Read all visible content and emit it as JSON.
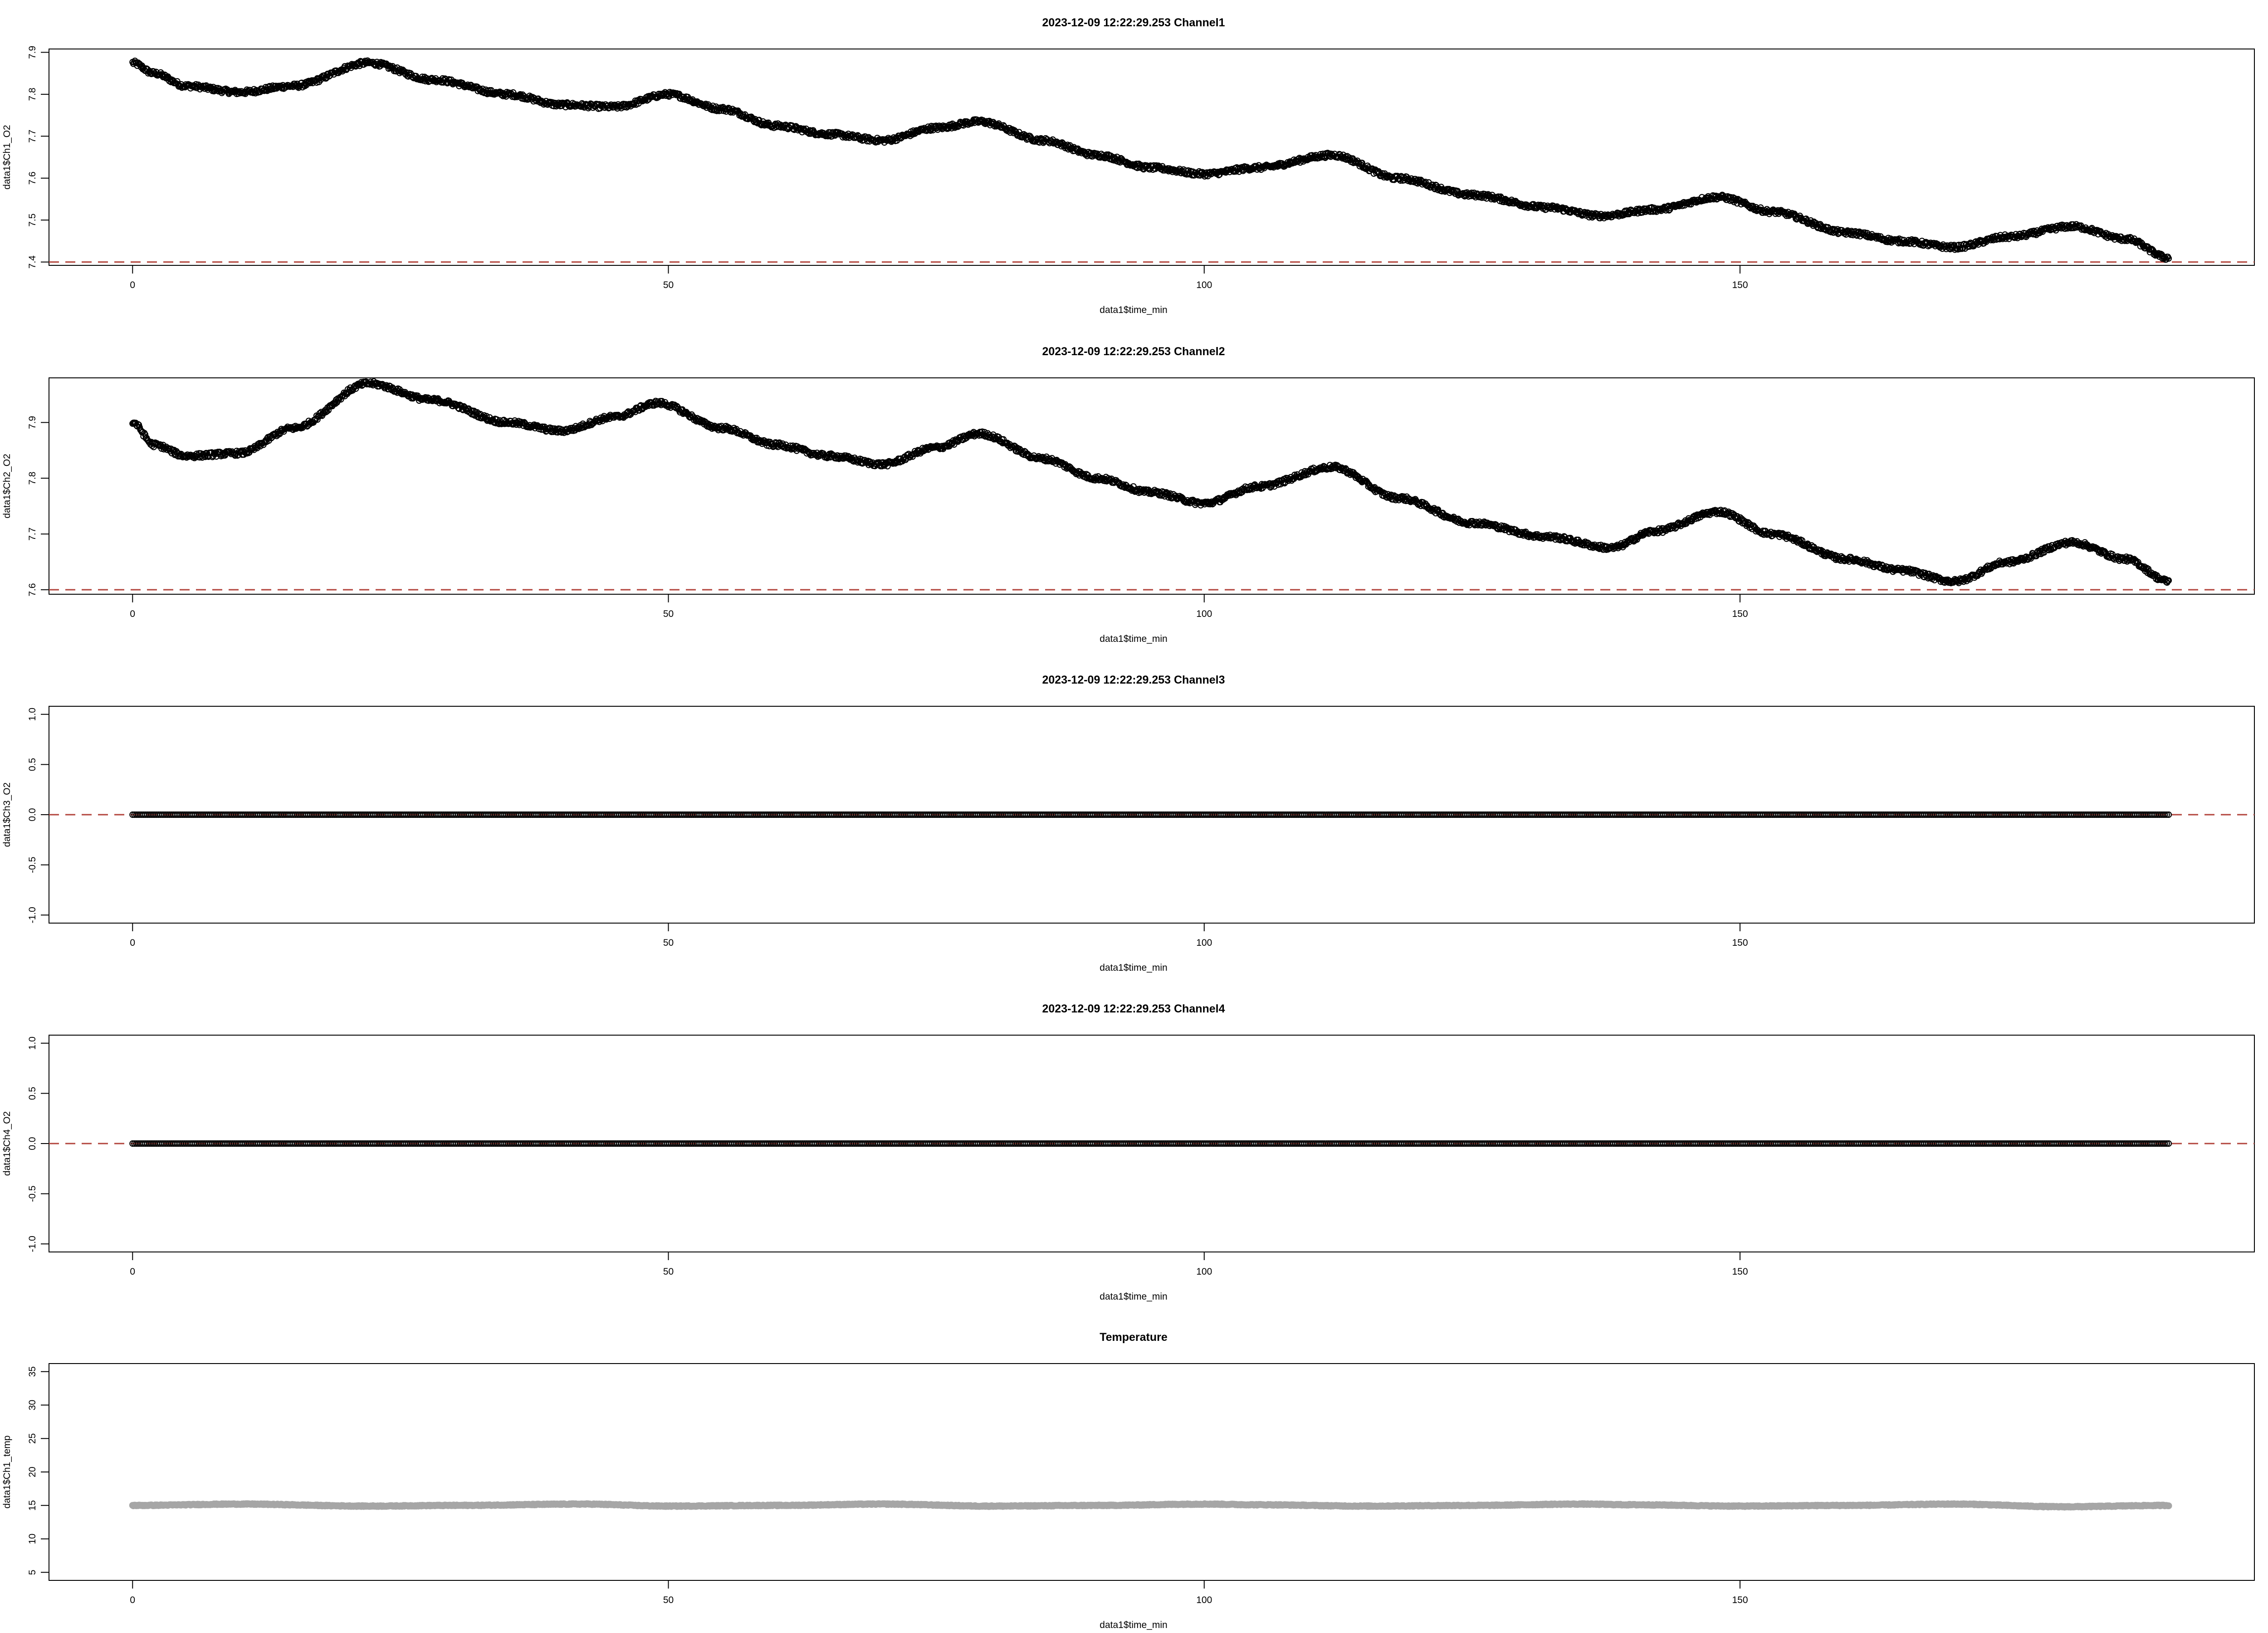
{
  "colors": {
    "points": "#000000",
    "temperature_points": "#a6a6a6",
    "reference_line": "#b2443c",
    "frame": "#000000"
  },
  "chart_data": [
    {
      "type": "scatter",
      "title": "2023-12-09 12:22:29.253 Channel1",
      "xlabel": "data1$time_min",
      "ylabel": "data1$Ch1_O2",
      "xlim": [
        -7.8,
        198
      ],
      "ylim": [
        7.392,
        7.908
      ],
      "xticks": [
        0,
        50,
        100,
        150
      ],
      "xtick_labels": [
        "0",
        "50",
        "100",
        "150"
      ],
      "yticks": [
        7.4,
        7.5,
        7.6,
        7.7,
        7.8,
        7.9
      ],
      "ytick_labels": [
        "7.4",
        "7.5",
        "7.6",
        "7.7",
        "7.8",
        "7.9"
      ],
      "hline": 7.4,
      "grid": false,
      "trend_x": [
        0,
        2,
        5,
        10,
        15,
        22,
        28,
        35,
        40,
        45,
        50,
        55,
        60,
        65,
        70,
        75,
        79,
        85,
        90,
        95,
        100,
        105,
        112,
        118,
        125,
        132,
        137,
        142,
        148,
        153,
        160,
        165,
        170,
        175,
        181,
        186,
        190
      ],
      "trend_y": [
        7.875,
        7.85,
        7.82,
        7.805,
        7.82,
        7.875,
        7.835,
        7.8,
        7.775,
        7.77,
        7.8,
        7.765,
        7.725,
        7.705,
        7.69,
        7.72,
        7.735,
        7.69,
        7.655,
        7.625,
        7.61,
        7.625,
        7.655,
        7.6,
        7.56,
        7.53,
        7.51,
        7.525,
        7.555,
        7.52,
        7.47,
        7.45,
        7.435,
        7.46,
        7.485,
        7.455,
        7.41
      ]
    },
    {
      "type": "scatter",
      "title": "2023-12-09 12:22:29.253 Channel2",
      "xlabel": "data1$time_min",
      "ylabel": "data1$Ch2_O2",
      "xlim": [
        -7.8,
        198
      ],
      "ylim": [
        7.592,
        7.98
      ],
      "xticks": [
        0,
        50,
        100,
        150
      ],
      "xtick_labels": [
        "0",
        "50",
        "100",
        "150"
      ],
      "yticks": [
        7.6,
        7.7,
        7.8,
        7.9
      ],
      "ytick_labels": [
        "7.6",
        "7.7",
        "7.8",
        "7.9"
      ],
      "hline": 7.6,
      "grid": false,
      "trend_x": [
        0,
        2,
        5,
        10,
        15,
        22,
        28,
        35,
        40,
        45,
        49,
        55,
        60,
        65,
        70,
        75,
        79,
        85,
        90,
        95,
        100,
        105,
        112,
        118,
        125,
        132,
        138,
        142,
        148,
        153,
        160,
        165,
        170,
        175,
        181,
        186,
        190
      ],
      "trend_y": [
        7.9,
        7.86,
        7.84,
        7.845,
        7.89,
        7.97,
        7.94,
        7.9,
        7.885,
        7.91,
        7.935,
        7.89,
        7.86,
        7.84,
        7.825,
        7.855,
        7.88,
        7.835,
        7.8,
        7.775,
        7.755,
        7.785,
        7.82,
        7.765,
        7.72,
        7.695,
        7.675,
        7.705,
        7.74,
        7.7,
        7.655,
        7.635,
        7.615,
        7.65,
        7.685,
        7.655,
        7.615
      ]
    },
    {
      "type": "scatter",
      "title": "2023-12-09 12:22:29.253 Channel3",
      "xlabel": "data1$time_min",
      "ylabel": "data1$Ch3_O2",
      "xlim": [
        -7.8,
        198
      ],
      "ylim": [
        -1.08,
        1.08
      ],
      "xticks": [
        0,
        50,
        100,
        150
      ],
      "xtick_labels": [
        "0",
        "50",
        "100",
        "150"
      ],
      "yticks": [
        -1.0,
        -0.5,
        0.0,
        0.5,
        1.0
      ],
      "ytick_labels": [
        "-1.0",
        "-0.5",
        "0.0",
        "0.5",
        "1.0"
      ],
      "hline": 0.0,
      "grid": false,
      "trend_x": [
        0,
        190
      ],
      "trend_y": [
        0,
        0
      ]
    },
    {
      "type": "scatter",
      "title": "2023-12-09 12:22:29.253 Channel4",
      "xlabel": "data1$time_min",
      "ylabel": "data1$Ch4_O2",
      "xlim": [
        -7.8,
        198
      ],
      "ylim": [
        -1.08,
        1.08
      ],
      "xticks": [
        0,
        50,
        100,
        150
      ],
      "xtick_labels": [
        "0",
        "50",
        "100",
        "150"
      ],
      "yticks": [
        -1.0,
        -0.5,
        0.0,
        0.5,
        1.0
      ],
      "ytick_labels": [
        "-1.0",
        "-0.5",
        "0.0",
        "0.5",
        "1.0"
      ],
      "hline": 0.0,
      "grid": false,
      "trend_x": [
        0,
        190
      ],
      "trend_y": [
        0,
        0
      ]
    },
    {
      "type": "scatter",
      "title": "Temperature",
      "xlabel": "data1$time_min",
      "ylabel": "data1$Ch1_temp",
      "xlim": [
        -7.8,
        198
      ],
      "ylim": [
        3.8,
        36.2
      ],
      "xticks": [
        0,
        50,
        100,
        150
      ],
      "xtick_labels": [
        "0",
        "50",
        "100",
        "150"
      ],
      "yticks": [
        5,
        10,
        15,
        20,
        25,
        30,
        35
      ],
      "ytick_labels": [
        "5",
        "10",
        "15",
        "20",
        "25",
        "30",
        "35"
      ],
      "hline": null,
      "grid": false,
      "trend_x": [
        0,
        10,
        22,
        30,
        42,
        50,
        60,
        70,
        80,
        90,
        100,
        105,
        115,
        125,
        135,
        140,
        150,
        160,
        170,
        180,
        190
      ],
      "trend_y": [
        15.0,
        15.2,
        14.9,
        15.0,
        15.2,
        14.9,
        15.0,
        15.2,
        14.9,
        15.0,
        15.2,
        15.1,
        14.9,
        15.0,
        15.2,
        15.1,
        14.9,
        15.0,
        15.2,
        14.8,
        15.0
      ]
    }
  ]
}
